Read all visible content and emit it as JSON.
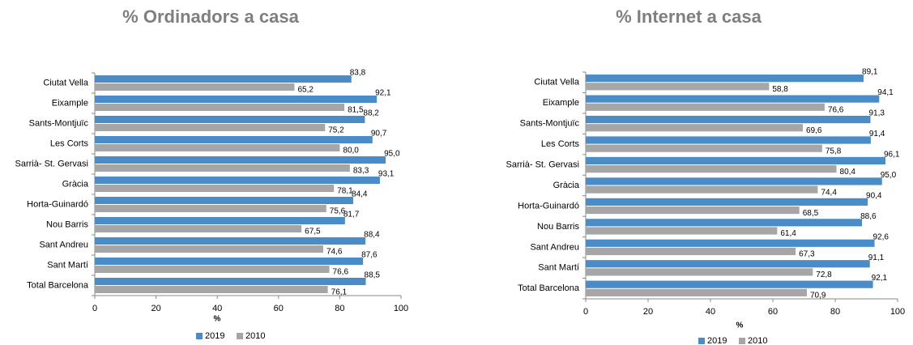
{
  "chart_data": [
    {
      "type": "bar",
      "orientation": "horizontal",
      "title": "% Ordinadors a casa",
      "xlabel": "%",
      "categories": [
        "Ciutat Vella",
        "Eixample",
        "Sants-Montjuïc",
        "Les Corts",
        "Sarrià- St. Gervasi",
        "Gràcia",
        "Horta-Guinardó",
        "Nou Barris",
        "Sant Andreu",
        "Sant Martí",
        "Total Barcelona"
      ],
      "series": [
        {
          "name": "2019",
          "color": "#4a8cc8",
          "values": [
            83.8,
            92.1,
            88.2,
            90.7,
            95.0,
            93.1,
            84.4,
            81.7,
            88.4,
            87.6,
            88.5
          ],
          "value_labels": [
            "83,8",
            "92,1",
            "88,2",
            "90,7",
            "95,0",
            "93,1",
            "84,4",
            "81,7",
            "88,4",
            "87,6",
            "88,5"
          ]
        },
        {
          "name": "2010",
          "color": "#a6a6a6",
          "values": [
            65.2,
            81.5,
            75.2,
            80.0,
            83.3,
            78.1,
            75.6,
            67.5,
            74.6,
            76.6,
            76.1
          ],
          "value_labels": [
            "65,2",
            "81,5",
            "75,2",
            "80,0",
            "83,3",
            "78,1",
            "75,6",
            "67,5",
            "74,6",
            "76,6",
            "76,1"
          ]
        }
      ],
      "xlim": [
        0,
        100
      ],
      "xticks": [
        0,
        20,
        40,
        60,
        80,
        100
      ],
      "legend": "bottom"
    },
    {
      "type": "bar",
      "orientation": "horizontal",
      "title": "% Internet a casa",
      "xlabel": "%",
      "categories": [
        "Ciutat Vella",
        "Eixample",
        "Sants-Montjuïc",
        "Les Corts",
        "Sarrià- St. Gervasi",
        "Gràcia",
        "Horta-Guinardó",
        "Nou Barris",
        "Sant Andreu",
        "Sant Martí",
        "Total Barcelona"
      ],
      "series": [
        {
          "name": "2019",
          "color": "#4a8cc8",
          "values": [
            89.1,
            94.1,
            91.3,
            91.4,
            96.1,
            95.0,
            90.4,
            88.6,
            92.6,
            91.1,
            92.1
          ],
          "value_labels": [
            "89,1",
            "94,1",
            "91,3",
            "91,4",
            "96,1",
            "95,0",
            "90,4",
            "88,6",
            "92,6",
            "91,1",
            "92,1"
          ]
        },
        {
          "name": "2010",
          "color": "#a6a6a6",
          "values": [
            58.8,
            76.6,
            69.6,
            75.8,
            80.4,
            74.4,
            68.5,
            61.4,
            67.3,
            72.8,
            70.9
          ],
          "value_labels": [
            "58,8",
            "76,6",
            "69,6",
            "75,8",
            "80,4",
            "74,4",
            "68,5",
            "61,4",
            "67,3",
            "72,8",
            "70,9"
          ]
        }
      ],
      "xlim": [
        0,
        100
      ],
      "xticks": [
        0,
        20,
        40,
        60,
        80,
        100
      ],
      "legend": "bottom"
    }
  ]
}
